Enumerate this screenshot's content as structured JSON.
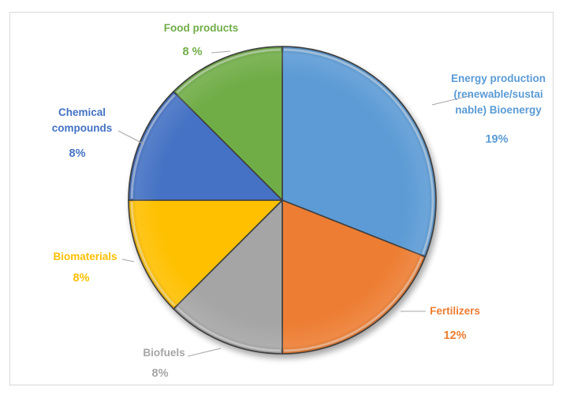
{
  "chart_data": {
    "type": "pie",
    "title": "",
    "series": [
      {
        "slices": [
          {
            "label": "Energy production (renewable/sustainable) Bioenergy",
            "label_lines": [
              "Energy production",
              "(renewable/sustai",
              "nable) Bioenergy"
            ],
            "pct_label": "19%",
            "share": 0.31,
            "color": "#5b9bd5"
          },
          {
            "label": "Fertilizers",
            "label_lines": [
              "Fertilizers"
            ],
            "pct_label": "12%",
            "share": 0.19,
            "color": "#ed7d31"
          },
          {
            "label": "Biofuels",
            "label_lines": [
              "Biofuels"
            ],
            "pct_label": "8%",
            "share": 0.125,
            "color": "#a5a5a5",
            "text_color": "#a5a5a5"
          },
          {
            "label": "Biomaterials",
            "label_lines": [
              "Biomaterials"
            ],
            "pct_label": "8%",
            "share": 0.125,
            "color": "#ffc000"
          },
          {
            "label": "Chemical compounds",
            "label_lines": [
              "Chemical",
              "compounds"
            ],
            "pct_label": "8%",
            "share": 0.125,
            "color": "#4472c4"
          },
          {
            "label": "Food products",
            "label_lines": [
              "Food products"
            ],
            "pct_label": "8 %",
            "share": 0.125,
            "color": "#70ad47"
          }
        ]
      }
    ],
    "legend": "none",
    "style": "3d-bevel"
  }
}
